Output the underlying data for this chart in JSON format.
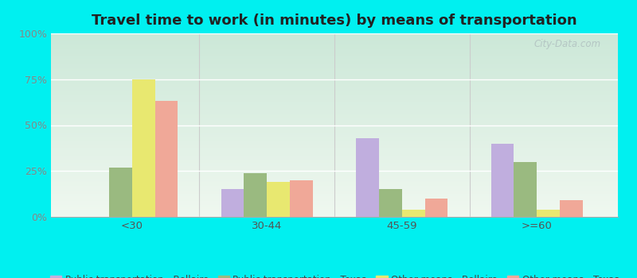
{
  "title": "Travel time to work (in minutes) by means of transportation",
  "categories": [
    "<30",
    "30-44",
    "45-59",
    ">=60"
  ],
  "series": {
    "Public transportation - Bellaire": [
      0,
      15,
      43,
      40
    ],
    "Public transportation - Texas": [
      27,
      24,
      15,
      30
    ],
    "Other means - Bellaire": [
      75,
      19,
      4,
      4
    ],
    "Other means - Texas": [
      63,
      20,
      10,
      9
    ]
  },
  "colors": {
    "Public transportation - Bellaire": "#c0aede",
    "Public transportation - Texas": "#9aba80",
    "Other means - Bellaire": "#e8e870",
    "Other means - Texas": "#f0a898"
  },
  "background_color": "#00f0f0",
  "ylim": [
    0,
    100
  ],
  "yticks": [
    0,
    25,
    50,
    75,
    100
  ],
  "ytick_labels": [
    "0%",
    "25%",
    "50%",
    "75%",
    "100%"
  ],
  "title_fontsize": 13,
  "legend_fontsize": 8.5,
  "watermark": "City-Data.com",
  "bar_width": 0.17,
  "plot_bg_top": "#cce8d8",
  "plot_bg_bottom": "#f0f8f0"
}
